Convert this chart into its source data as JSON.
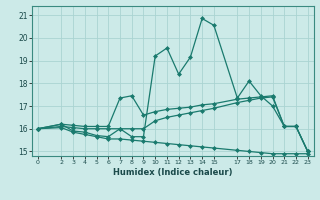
{
  "xlabel": "Humidex (Indice chaleur)",
  "bg_color": "#cceae8",
  "grid_color": "#aad4d2",
  "line_color": "#1a7a6e",
  "xlim": [
    -0.5,
    23.5
  ],
  "ylim": [
    14.8,
    21.4
  ],
  "xticks": [
    0,
    2,
    3,
    4,
    5,
    6,
    7,
    8,
    9,
    10,
    11,
    12,
    13,
    14,
    15,
    17,
    18,
    19,
    20,
    21,
    22,
    23
  ],
  "yticks": [
    15,
    16,
    17,
    18,
    19,
    20,
    21
  ],
  "series": {
    "line1_x": [
      0,
      2,
      3,
      4,
      5,
      6,
      7,
      8,
      9,
      10,
      11,
      12,
      13,
      14,
      15,
      17,
      18,
      19,
      20,
      21,
      22,
      23
    ],
    "line1_y": [
      16.0,
      16.2,
      15.9,
      15.85,
      15.7,
      15.65,
      16.0,
      15.65,
      15.65,
      19.2,
      19.55,
      18.4,
      19.15,
      20.85,
      20.55,
      17.35,
      18.1,
      17.45,
      17.0,
      16.1,
      16.1,
      15.0
    ],
    "line2_x": [
      0,
      2,
      3,
      4,
      5,
      6,
      7,
      8,
      9,
      10,
      11,
      12,
      13,
      14,
      15,
      17,
      18,
      19,
      20,
      21,
      22,
      23
    ],
    "line2_y": [
      16.0,
      16.2,
      16.15,
      16.1,
      16.1,
      16.1,
      17.35,
      17.45,
      16.6,
      16.75,
      16.85,
      16.9,
      16.95,
      17.05,
      17.1,
      17.3,
      17.35,
      17.4,
      17.45,
      16.1,
      16.1,
      15.0
    ],
    "line3_x": [
      0,
      2,
      3,
      4,
      5,
      6,
      7,
      8,
      9,
      10,
      11,
      12,
      13,
      14,
      15,
      17,
      18,
      19,
      20,
      21,
      22,
      23
    ],
    "line3_y": [
      16.0,
      16.1,
      16.05,
      16.0,
      16.0,
      16.0,
      16.0,
      16.0,
      16.0,
      16.35,
      16.5,
      16.6,
      16.7,
      16.8,
      16.9,
      17.15,
      17.25,
      17.35,
      17.4,
      16.1,
      16.1,
      15.0
    ],
    "line4_x": [
      0,
      2,
      3,
      4,
      5,
      6,
      7,
      8,
      9,
      10,
      11,
      12,
      13,
      14,
      15,
      17,
      18,
      19,
      20,
      21,
      22,
      23
    ],
    "line4_y": [
      16.0,
      16.05,
      15.85,
      15.75,
      15.65,
      15.55,
      15.55,
      15.5,
      15.45,
      15.4,
      15.35,
      15.3,
      15.25,
      15.2,
      15.15,
      15.05,
      15.0,
      14.95,
      14.9,
      14.9,
      14.9,
      14.9
    ]
  }
}
